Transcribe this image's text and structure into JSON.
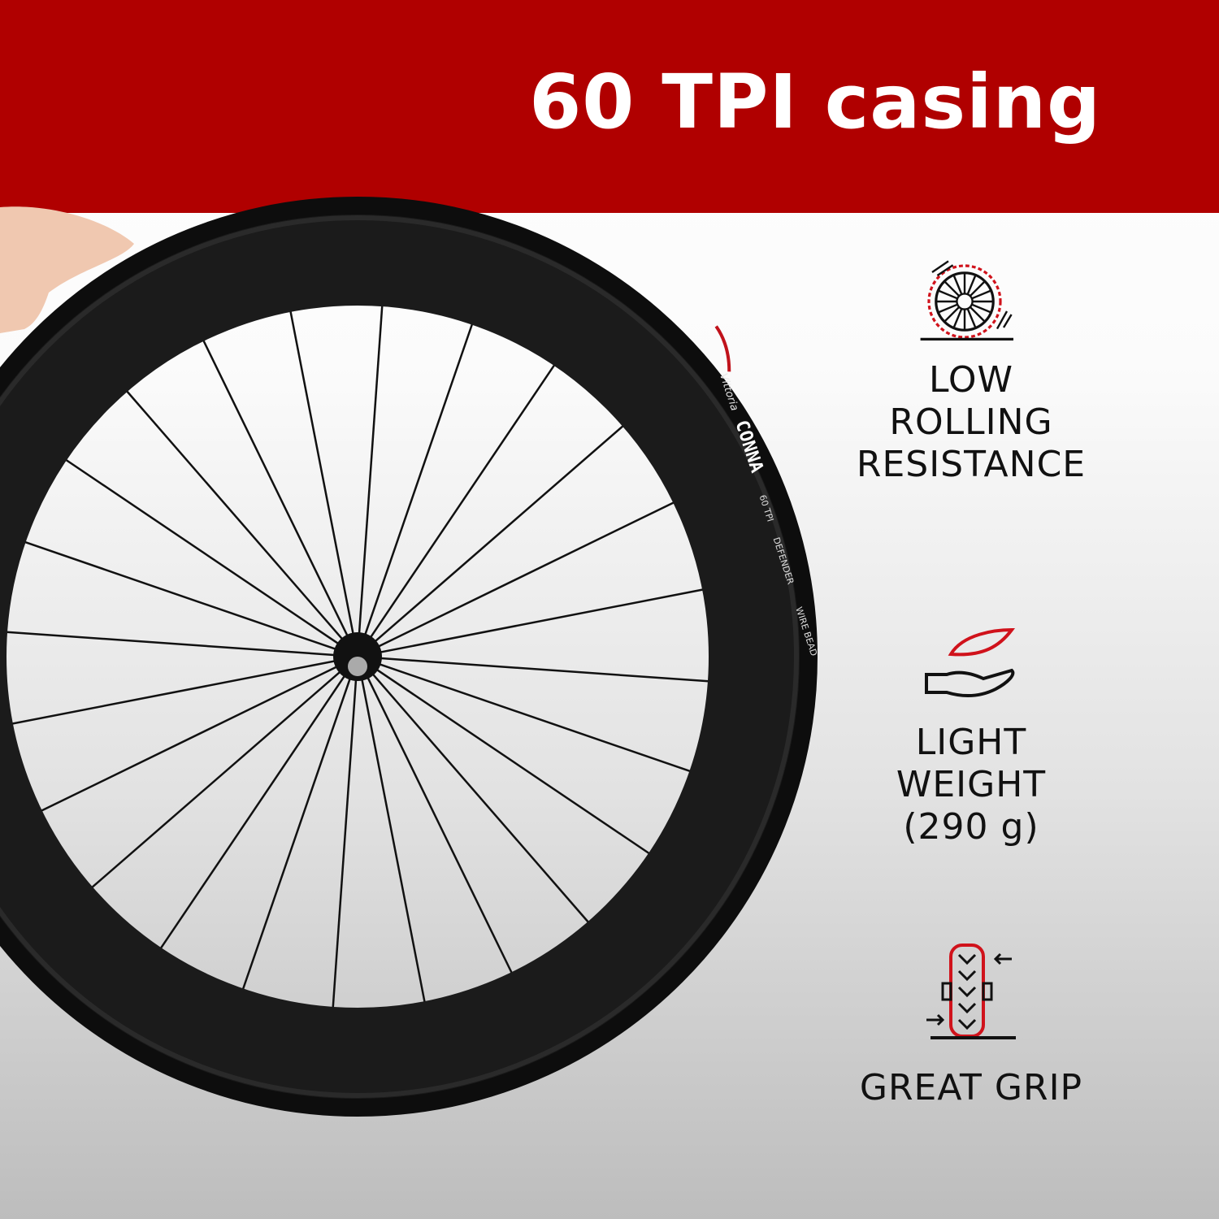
{
  "header": {
    "title": "60 TPI casing",
    "background": "#b00000"
  },
  "tire_sidewall": {
    "brand_mark": "Vittoria",
    "model": "CONNA",
    "tpi": "60 TPI",
    "tech": "DEFENDER",
    "bead": "WIRE BEAD"
  },
  "features": [
    {
      "icon": "rolling-wheel-icon",
      "lines": [
        "LOW",
        "ROLLING",
        "RESISTANCE"
      ]
    },
    {
      "icon": "feather-hand-icon",
      "lines": [
        "LIGHT",
        "WEIGHT",
        "(290 g)"
      ]
    },
    {
      "icon": "tire-grip-icon",
      "lines": [
        "GREAT GRIP"
      ]
    }
  ],
  "colors": {
    "accent": "#d0121b",
    "text": "#111111"
  }
}
